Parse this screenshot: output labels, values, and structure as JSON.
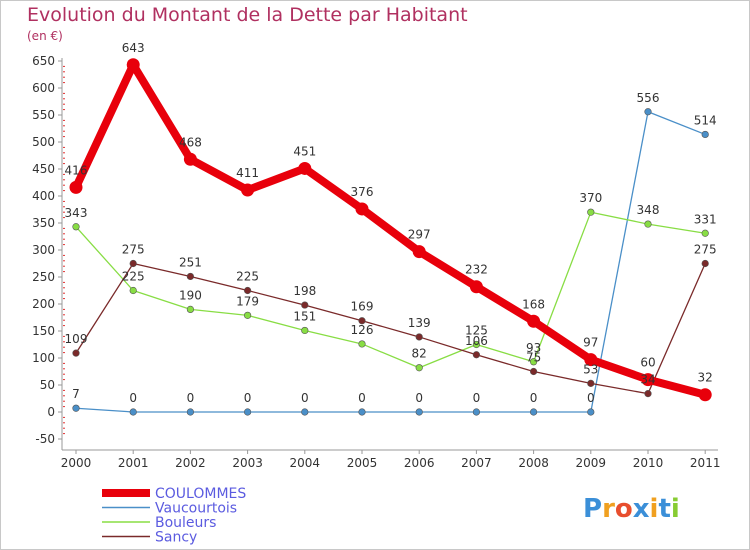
{
  "title": "Evolution du Montant de la Dette par Habitant",
  "unit_label": "(en €)",
  "logo": "Proxiti",
  "chart_data": {
    "type": "line",
    "x": [
      "2000",
      "2001",
      "2002",
      "2003",
      "2004",
      "2005",
      "2006",
      "2007",
      "2008",
      "2009",
      "2010",
      "2011"
    ],
    "ylim": [
      -50,
      650
    ],
    "yticks": [
      -50,
      0,
      50,
      100,
      150,
      200,
      250,
      300,
      350,
      400,
      450,
      500,
      550,
      600,
      650
    ],
    "grid": false,
    "legend_position": "bottom-left",
    "series": [
      {
        "name": "COULOMMES",
        "color": "#e8000b",
        "values": [
          416,
          643,
          468,
          411,
          451,
          376,
          297,
          232,
          168,
          97,
          60,
          32
        ],
        "labels": [
          "416",
          "643",
          "468",
          "411",
          "451",
          "376",
          "297",
          "232",
          "168",
          "97",
          "60",
          "32"
        ]
      },
      {
        "name": "Vaucourtois",
        "color": "#4a8fc8",
        "values": [
          7,
          0,
          0,
          0,
          0,
          0,
          0,
          0,
          0,
          0,
          556,
          514
        ],
        "labels": [
          "7",
          "0",
          "0",
          "0",
          "0",
          "0",
          "0",
          "0",
          "0",
          "0",
          "556",
          "514"
        ]
      },
      {
        "name": "Bouleurs",
        "color": "#88dd44",
        "values": [
          343,
          225,
          190,
          179,
          151,
          126,
          82,
          125,
          93,
          370,
          348,
          331
        ],
        "labels": [
          "343",
          "225",
          "190",
          "179",
          "151",
          "126",
          "82",
          "125",
          "93",
          "370",
          "348",
          "331"
        ]
      },
      {
        "name": "Sancy",
        "color": "#7a2a2a",
        "values": [
          109,
          275,
          251,
          225,
          198,
          169,
          139,
          106,
          75,
          53,
          34,
          275
        ],
        "labels": [
          "109",
          "275",
          "251",
          "225",
          "198",
          "169",
          "139",
          "106",
          "75",
          "53",
          "34",
          "275"
        ]
      }
    ]
  }
}
